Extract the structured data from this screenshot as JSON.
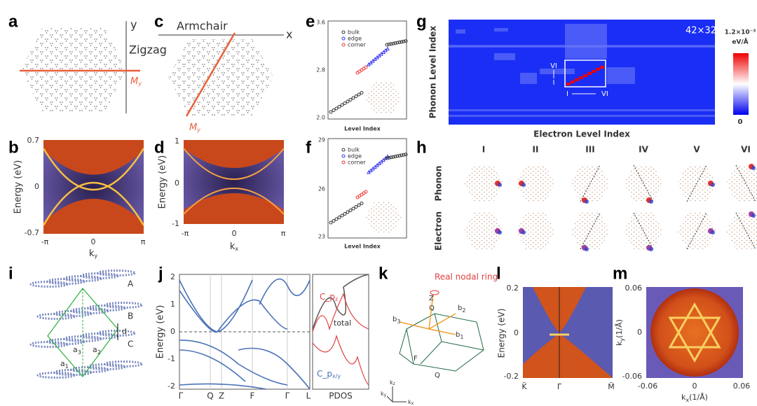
{
  "panels": {
    "a": {
      "label": "a",
      "axis": "y",
      "direction": "Zigzag",
      "mirror": {
        "main": "M",
        "sub": "y"
      }
    },
    "b": {
      "label": "b",
      "yticks": [
        "0.7",
        "0",
        "-0.7"
      ],
      "ylabel": "Energy (eV)",
      "xticks": [
        "-π",
        "0",
        "π"
      ],
      "xlabel": {
        "main": "k",
        "sub": "y"
      }
    },
    "c": {
      "label": "c",
      "direction": "Armchair",
      "axis": "x",
      "mirror": {
        "main": "M",
        "sub": "y"
      }
    },
    "d": {
      "label": "d",
      "yticks": [
        "1",
        "0",
        "-1"
      ],
      "ylabel": "Energy (eV)",
      "xticks": [
        "-π",
        "0",
        "π"
      ],
      "xlabel": {
        "main": "k",
        "sub": "x"
      }
    },
    "e": {
      "label": "e",
      "yticks": [
        "3.6",
        "2.8",
        "2.0"
      ],
      "legend": [
        "bulk",
        "edge",
        "corner"
      ],
      "xlabel": "Level  Index"
    },
    "f": {
      "label": "f",
      "yticks": [
        "29",
        "26",
        "23"
      ],
      "legend": [
        "bulk",
        "edge",
        "corner"
      ],
      "xlabel": "Level  Index"
    },
    "g": {
      "label": "g",
      "size": "42×32",
      "colorbar_max": "1.2×10⁻³",
      "colorbar_unit": "eV/Å",
      "colorbar_min": "0",
      "ylabel": "Phonon Level Index",
      "xlabel": "Electron Level Index",
      "inset": [
        "VI",
        "I",
        "I",
        "VI"
      ]
    },
    "h": {
      "label": "h",
      "columns": [
        "I",
        "II",
        "III",
        "IV",
        "V",
        "VI"
      ],
      "rows": [
        "Phonon",
        "Electron"
      ]
    },
    "i": {
      "label": "i",
      "layers": [
        "A",
        "B",
        "C"
      ],
      "spacing": "d",
      "vectors": [
        {
          "main": "a",
          "sub": "1"
        },
        {
          "main": "a",
          "sub": "2"
        },
        {
          "main": "a",
          "sub": "3"
        }
      ]
    },
    "j": {
      "label": "j",
      "yticks": [
        "2",
        "1",
        "0",
        "-1",
        "-2"
      ],
      "ylabel": "Energy (eV)",
      "xticks": [
        "Γ",
        "Q",
        "Z",
        "F",
        "Γ",
        "L"
      ],
      "pdos": "PDOS",
      "curves": [
        {
          "main": "C_p",
          "sub": "z"
        },
        {
          "main": "total",
          "sub": ""
        },
        {
          "main": "C_p",
          "sub": "x/y"
        }
      ]
    },
    "k": {
      "label": "k",
      "annotation": "Real nodal ring",
      "points": [
        "Z",
        "Q",
        "F",
        "Q"
      ],
      "vectors": [
        {
          "main": "b",
          "sub": "1"
        },
        {
          "main": "b",
          "sub": "2"
        },
        {
          "main": "b",
          "sub": "3"
        }
      ],
      "axes": [
        {
          "main": "k",
          "sub": "x"
        },
        {
          "main": "k",
          "sub": "y"
        },
        {
          "main": "k",
          "sub": "z"
        }
      ]
    },
    "l": {
      "label": "l",
      "yticks": [
        "0.2",
        "0",
        "-0.2"
      ],
      "ylabel": "Energy (eV)",
      "xticks": [
        "K̄",
        "Γ̄",
        "M̄"
      ]
    },
    "m": {
      "label": "m",
      "yticks": [
        "0.06",
        "0",
        "-0.06"
      ],
      "xticks": [
        "-0.06",
        "0",
        "0.06"
      ],
      "ylabel": {
        "main": "k",
        "sub": "y",
        "rest": "(1/Å)"
      },
      "xlabel": {
        "main": "k",
        "sub": "x",
        "rest": "(1/Å)"
      }
    }
  }
}
